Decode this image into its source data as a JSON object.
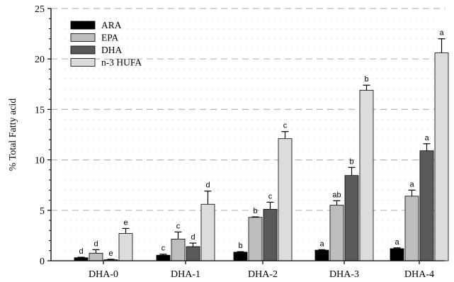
{
  "chart_data": {
    "type": "bar",
    "title": "",
    "xlabel": "",
    "ylabel": "% Total Fatty acid",
    "ylim": [
      0,
      25
    ],
    "yticks": [
      0,
      5,
      10,
      15,
      20,
      25
    ],
    "grid": true,
    "legend_position": "top-left",
    "categories": [
      "DHA-0",
      "DHA-1",
      "DHA-2",
      "DHA-3",
      "DHA-4"
    ],
    "series": [
      {
        "name": "ARA",
        "color": "#000000",
        "values": [
          0.3,
          0.55,
          0.85,
          1.05,
          1.2
        ],
        "errors": [
          0.05,
          0.1,
          0.05,
          0.05,
          0.08
        ],
        "labels": [
          "d",
          "c",
          "b",
          "a",
          "a"
        ]
      },
      {
        "name": "EPA",
        "color": "#bdbdbd",
        "values": [
          0.75,
          2.15,
          4.3,
          5.5,
          6.4
        ],
        "errors": [
          0.35,
          0.7,
          0.05,
          0.45,
          0.6
        ],
        "labels": [
          "d",
          "c",
          "b",
          "ab",
          "a"
        ]
      },
      {
        "name": "DHA",
        "color": "#5a5a5a",
        "values": [
          0.1,
          1.4,
          5.1,
          8.45,
          10.9
        ],
        "errors": [
          0.05,
          0.35,
          0.7,
          0.8,
          0.7
        ],
        "labels": [
          "e",
          "d",
          "c",
          "b",
          "a"
        ]
      },
      {
        "name": "n-3 HUFA",
        "color": "#dcdcdc",
        "values": [
          2.7,
          5.6,
          12.1,
          16.9,
          20.6
        ],
        "errors": [
          0.5,
          1.3,
          0.7,
          0.5,
          1.4
        ],
        "labels": [
          "e",
          "d",
          "c",
          "b",
          "a"
        ]
      }
    ]
  }
}
